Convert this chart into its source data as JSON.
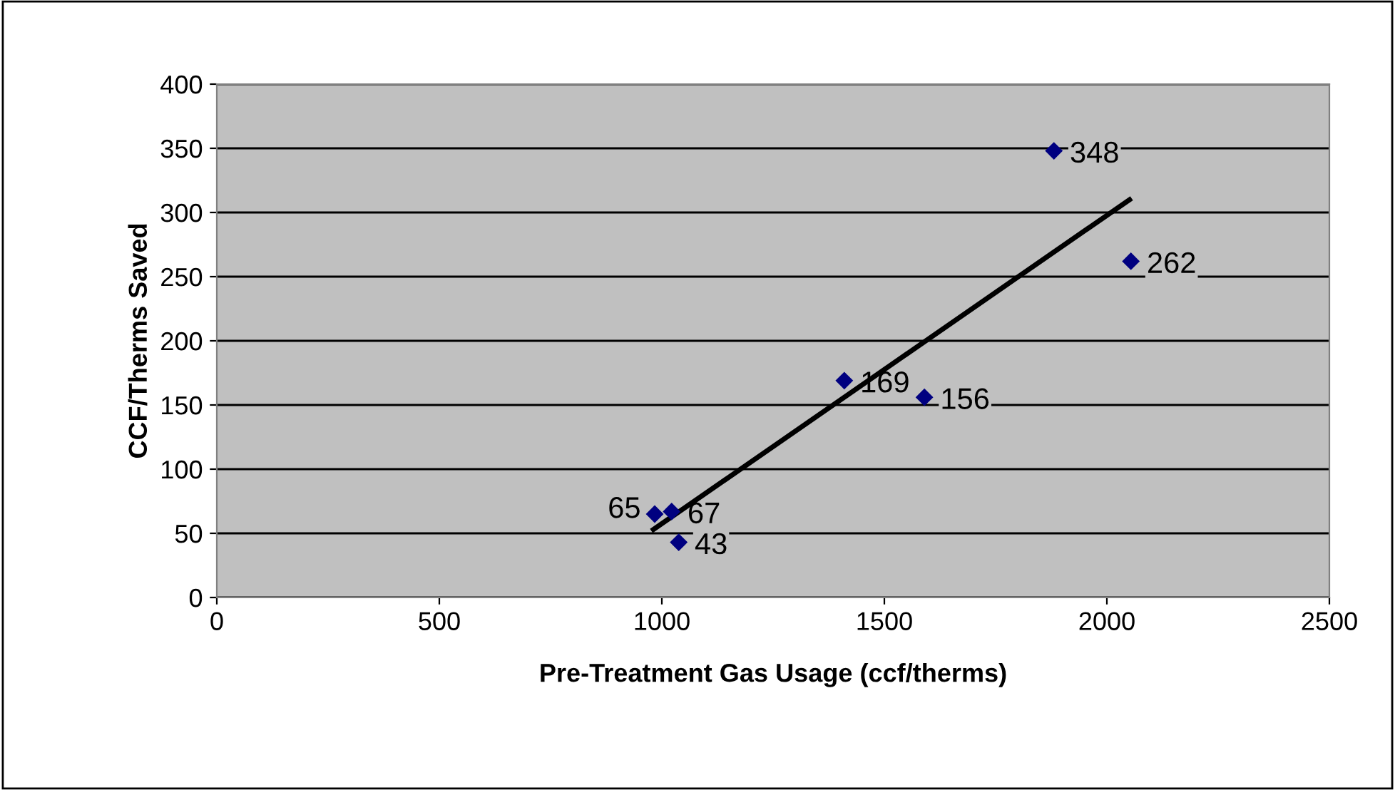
{
  "chart_data": {
    "type": "scatter",
    "xlabel": "Pre-Treatment Gas Usage (ccf/therms)",
    "ylabel": "CCF/Therms Saved",
    "xlim": [
      0,
      2500
    ],
    "xticks": [
      0,
      500,
      1000,
      1500,
      2000,
      2500
    ],
    "ylim": [
      0,
      400
    ],
    "yticks": [
      0,
      50,
      100,
      150,
      200,
      250,
      300,
      350,
      400
    ],
    "grid": "y",
    "marker": "diamond",
    "series": [
      {
        "color": "#000080",
        "x": [
          984,
          1022,
          1038,
          1410,
          1590,
          1881,
          2054
        ],
        "values": [
          65,
          67,
          43,
          169,
          156,
          348,
          262
        ],
        "value_labels": [
          "65",
          "67",
          "43",
          "169",
          "156",
          "348",
          "262"
        ]
      },
      {
        "type": "line",
        "color": "#000000",
        "x": [
          981,
          2051
        ],
        "values": [
          53,
          310
        ],
        "marker": "none",
        "line_style": "solid"
      }
    ]
  }
}
